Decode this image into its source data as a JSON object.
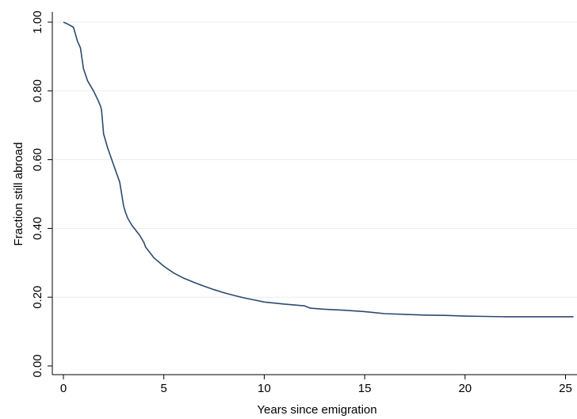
{
  "chart_data": {
    "type": "line",
    "title": "",
    "xlabel": "Years since emigration",
    "ylabel": "Fraction still abroad",
    "xlim": [
      0,
      25
    ],
    "ylim": [
      0,
      1
    ],
    "x_ticks": [
      0,
      5,
      10,
      15,
      20,
      25
    ],
    "x_tick_labels": [
      "0",
      "5",
      "10",
      "15",
      "20",
      "25"
    ],
    "y_ticks": [
      0,
      0.2,
      0.4,
      0.6,
      0.8,
      1.0
    ],
    "y_tick_labels": [
      "0.00",
      "0.20",
      "0.40",
      "0.60",
      "0.80",
      "1.00"
    ],
    "grid": "horizontal",
    "legend": "none",
    "colors": {
      "line": "#2c4a6e",
      "grid": "#e8eef3",
      "axis": "#000000",
      "background": "#ffffff"
    },
    "series": [
      {
        "x": [
          0,
          0.2,
          0.5,
          0.7,
          0.85,
          1.0,
          1.2,
          1.5,
          1.75,
          1.85,
          1.9,
          2.0,
          2.2,
          2.5,
          2.8,
          3.0,
          3.1,
          3.2,
          3.4,
          3.6,
          3.8,
          4.0,
          4.1,
          4.3,
          4.5,
          5.0,
          5.5,
          6.0,
          6.5,
          7.0,
          7.5,
          8.0,
          8.5,
          9.0,
          10.0,
          11.0,
          12.0,
          12.3,
          13.0,
          14.0,
          15.0,
          16.0,
          17.0,
          18.0,
          19.0,
          20.0,
          21.0,
          22.0,
          23.0,
          24.0,
          25.0,
          25.4
        ],
        "y": [
          1.0,
          0.995,
          0.985,
          0.945,
          0.925,
          0.865,
          0.83,
          0.8,
          0.77,
          0.755,
          0.745,
          0.675,
          0.635,
          0.585,
          0.535,
          0.465,
          0.445,
          0.43,
          0.41,
          0.395,
          0.38,
          0.36,
          0.345,
          0.33,
          0.315,
          0.29,
          0.27,
          0.255,
          0.243,
          0.232,
          0.222,
          0.213,
          0.205,
          0.198,
          0.186,
          0.18,
          0.175,
          0.168,
          0.165,
          0.162,
          0.158,
          0.152,
          0.15,
          0.148,
          0.147,
          0.145,
          0.144,
          0.143,
          0.143,
          0.143,
          0.143,
          0.143
        ]
      }
    ]
  }
}
